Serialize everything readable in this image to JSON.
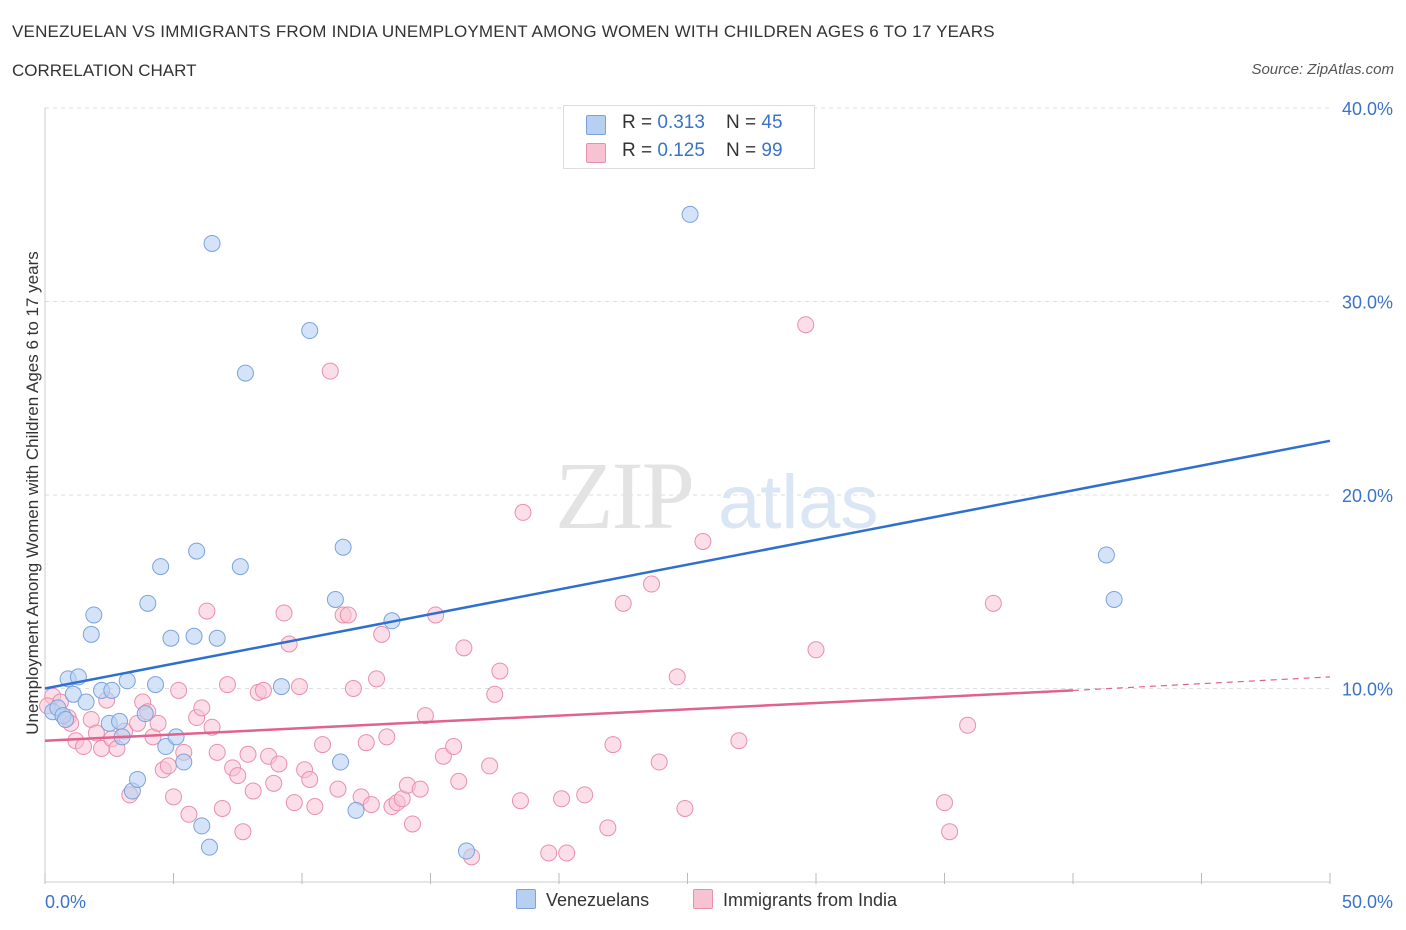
{
  "title": "VENEZUELAN VS IMMIGRANTS FROM INDIA UNEMPLOYMENT AMONG WOMEN WITH CHILDREN AGES 6 TO 17 YEARS",
  "subtitle": "CORRELATION CHART",
  "source": "Source: ZipAtlas.com",
  "watermark": {
    "zip": "ZIP",
    "atlas": "atlas"
  },
  "legend": {
    "venezuelans": {
      "r_label": "R = ",
      "r_value": "0.313",
      "n_label": "N = ",
      "n_value": "45"
    },
    "india": {
      "r_label": "R = ",
      "r_value": "0.125",
      "n_label": "N = ",
      "n_value": "99"
    }
  },
  "bottom_legend": {
    "venezuelans": "Venezuelans",
    "india": "Immigrants from India"
  },
  "colors": {
    "venezuelans_fill": "#b7d0f2",
    "venezuelans_stroke": "#7aa3de",
    "venezuelans_line": "#2f6fcf",
    "india_fill": "#f7c3d3",
    "india_stroke": "#e98fae",
    "india_line": "#e0628f",
    "axis_label": "#3a73c9",
    "grid": "#dddddd"
  },
  "chart_data": {
    "type": "scatter",
    "xlabel": "",
    "ylabel": "Unemployment Among Women with Children Ages 6 to 17 years",
    "xlim": [
      0,
      50
    ],
    "ylim": [
      0,
      40
    ],
    "x_tick_labels": [
      "0.0%",
      "50.0%"
    ],
    "y_ticks": [
      10,
      20,
      30,
      40
    ],
    "y_tick_labels": [
      "10.0%",
      "20.0%",
      "30.0%",
      "40.0%"
    ],
    "grid": "horizontal dashed",
    "series": [
      {
        "name": "Venezuelans",
        "trend": {
          "x": [
            0,
            50
          ],
          "y": [
            10.0,
            22.8
          ],
          "dashed_from": null
        },
        "points": [
          [
            0.3,
            8.8
          ],
          [
            0.5,
            9.0
          ],
          [
            0.7,
            8.6
          ],
          [
            0.8,
            8.4
          ],
          [
            0.9,
            10.5
          ],
          [
            1.1,
            9.7
          ],
          [
            1.3,
            10.6
          ],
          [
            1.6,
            9.3
          ],
          [
            1.8,
            12.8
          ],
          [
            1.9,
            13.8
          ],
          [
            2.2,
            9.9
          ],
          [
            2.5,
            8.2
          ],
          [
            2.6,
            9.9
          ],
          [
            2.9,
            8.3
          ],
          [
            3.0,
            7.5
          ],
          [
            3.2,
            10.4
          ],
          [
            3.4,
            4.7
          ],
          [
            3.6,
            5.3
          ],
          [
            3.9,
            8.7
          ],
          [
            4.0,
            14.4
          ],
          [
            4.3,
            10.2
          ],
          [
            4.5,
            16.3
          ],
          [
            4.7,
            7.0
          ],
          [
            4.9,
            12.6
          ],
          [
            5.1,
            7.5
          ],
          [
            5.4,
            6.2
          ],
          [
            5.8,
            12.7
          ],
          [
            5.9,
            17.1
          ],
          [
            6.1,
            2.9
          ],
          [
            6.4,
            1.8
          ],
          [
            6.5,
            33.0
          ],
          [
            6.7,
            12.6
          ],
          [
            7.6,
            16.3
          ],
          [
            7.8,
            26.3
          ],
          [
            9.2,
            10.1
          ],
          [
            10.3,
            28.5
          ],
          [
            11.3,
            14.6
          ],
          [
            11.6,
            17.3
          ],
          [
            11.5,
            6.2
          ],
          [
            12.1,
            3.7
          ],
          [
            13.5,
            13.5
          ],
          [
            16.4,
            1.6
          ],
          [
            25.1,
            34.5
          ],
          [
            41.3,
            16.9
          ],
          [
            41.6,
            14.6
          ]
        ]
      },
      {
        "name": "Immigrants from India",
        "trend": {
          "x": [
            0,
            40,
            50
          ],
          "y": [
            7.3,
            9.9,
            10.6
          ],
          "dashed_from": 40
        },
        "points": [
          [
            0.3,
            9.6
          ],
          [
            0.6,
            9.3
          ],
          [
            0.9,
            8.5
          ],
          [
            1.2,
            7.3
          ],
          [
            1.5,
            7.0
          ],
          [
            1.8,
            8.4
          ],
          [
            2.0,
            7.7
          ],
          [
            2.2,
            6.9
          ],
          [
            2.4,
            9.4
          ],
          [
            2.6,
            7.4
          ],
          [
            2.8,
            6.9
          ],
          [
            3.1,
            7.8
          ],
          [
            3.3,
            4.5
          ],
          [
            3.6,
            8.2
          ],
          [
            3.8,
            9.3
          ],
          [
            4.0,
            8.8
          ],
          [
            4.2,
            7.5
          ],
          [
            4.4,
            8.2
          ],
          [
            4.6,
            5.8
          ],
          [
            4.8,
            6.0
          ],
          [
            5.0,
            4.4
          ],
          [
            5.2,
            9.9
          ],
          [
            5.4,
            6.7
          ],
          [
            5.6,
            3.5
          ],
          [
            5.9,
            8.5
          ],
          [
            6.1,
            9.0
          ],
          [
            6.3,
            14.0
          ],
          [
            6.5,
            8.0
          ],
          [
            6.7,
            6.7
          ],
          [
            6.9,
            3.8
          ],
          [
            7.1,
            10.2
          ],
          [
            7.3,
            5.9
          ],
          [
            7.5,
            5.5
          ],
          [
            7.7,
            2.6
          ],
          [
            7.9,
            6.6
          ],
          [
            8.1,
            4.7
          ],
          [
            8.3,
            9.8
          ],
          [
            8.5,
            9.9
          ],
          [
            8.7,
            6.5
          ],
          [
            8.9,
            5.1
          ],
          [
            9.1,
            6.1
          ],
          [
            9.3,
            13.9
          ],
          [
            9.5,
            12.3
          ],
          [
            9.7,
            4.1
          ],
          [
            9.9,
            10.1
          ],
          [
            10.1,
            5.8
          ],
          [
            10.3,
            5.3
          ],
          [
            10.5,
            3.9
          ],
          [
            10.8,
            7.1
          ],
          [
            11.1,
            26.4
          ],
          [
            11.4,
            4.8
          ],
          [
            11.6,
            13.8
          ],
          [
            11.8,
            13.8
          ],
          [
            12.0,
            10.0
          ],
          [
            12.3,
            4.4
          ],
          [
            12.5,
            7.2
          ],
          [
            12.7,
            4.0
          ],
          [
            12.9,
            10.5
          ],
          [
            13.1,
            12.8
          ],
          [
            13.3,
            7.5
          ],
          [
            13.5,
            3.9
          ],
          [
            13.7,
            4.1
          ],
          [
            13.9,
            4.3
          ],
          [
            14.1,
            5.0
          ],
          [
            14.3,
            3.0
          ],
          [
            14.6,
            4.8
          ],
          [
            14.8,
            8.6
          ],
          [
            15.2,
            13.8
          ],
          [
            15.5,
            6.5
          ],
          [
            15.9,
            7.0
          ],
          [
            16.1,
            5.2
          ],
          [
            16.3,
            12.1
          ],
          [
            16.6,
            1.3
          ],
          [
            17.3,
            6.0
          ],
          [
            17.5,
            9.7
          ],
          [
            17.7,
            10.9
          ],
          [
            18.5,
            4.2
          ],
          [
            18.6,
            19.1
          ],
          [
            19.6,
            1.5
          ],
          [
            20.1,
            4.3
          ],
          [
            20.3,
            1.5
          ],
          [
            21.0,
            4.5
          ],
          [
            21.9,
            2.8
          ],
          [
            22.1,
            7.1
          ],
          [
            22.5,
            14.4
          ],
          [
            23.6,
            15.4
          ],
          [
            23.9,
            6.2
          ],
          [
            24.6,
            10.6
          ],
          [
            24.9,
            3.8
          ],
          [
            25.6,
            17.6
          ],
          [
            27.0,
            7.3
          ],
          [
            29.6,
            28.8
          ],
          [
            30.0,
            12.0
          ],
          [
            35.0,
            4.1
          ],
          [
            35.2,
            2.6
          ],
          [
            35.9,
            8.1
          ],
          [
            36.9,
            14.4
          ],
          [
            0.1,
            9.1
          ],
          [
            1.0,
            8.2
          ]
        ]
      }
    ]
  }
}
